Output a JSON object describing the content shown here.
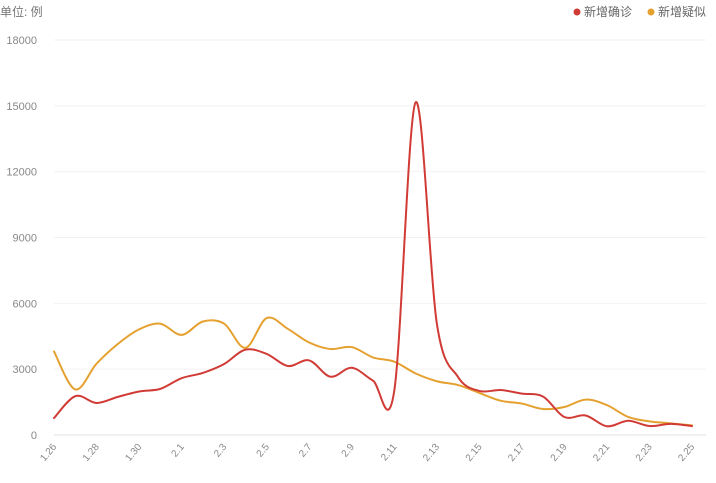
{
  "chart_data": {
    "type": "line",
    "unit_label": "单位: 例",
    "x": [
      "1.26",
      "1.27",
      "1.28",
      "1.29",
      "1.30",
      "1.31",
      "2.1",
      "2.2",
      "2.3",
      "2.4",
      "2.5",
      "2.6",
      "2.7",
      "2.8",
      "2.9",
      "2.10",
      "2.11",
      "2.12",
      "2.13",
      "2.14",
      "2.15",
      "2.16",
      "2.17",
      "2.18",
      "2.19",
      "2.20",
      "2.21",
      "2.22",
      "2.23",
      "2.24",
      "2.25"
    ],
    "x_tick_labels": [
      "1.26",
      "1.28",
      "1.30",
      "2.1",
      "2.3",
      "2.5",
      "2.7",
      "2.9",
      "2.11",
      "2.13",
      "2.15",
      "2.17",
      "2.19",
      "2.21",
      "2.23",
      "2.25"
    ],
    "y_ticks": [
      0,
      3000,
      6000,
      9000,
      12000,
      15000,
      18000
    ],
    "ylim": [
      0,
      18000
    ],
    "grid": true,
    "legend_position": "top-right",
    "series": [
      {
        "name": "新增确诊",
        "color": "#d13b36",
        "values": [
          770,
          1771,
          1459,
          1737,
          1982,
          2102,
          2590,
          2829,
          3235,
          3887,
          3694,
          3143,
          3399,
          2656,
          3062,
          2478,
          2015,
          15152,
          5090,
          2641,
          2009,
          2048,
          1886,
          1749,
          820,
          889,
          397,
          648,
          409,
          508,
          406
        ],
        "style": "smooth"
      },
      {
        "name": "新增疑似",
        "color": "#e5a12f",
        "values": [
          3806,
          2077,
          3248,
          4148,
          4812,
          5072,
          4562,
          5173,
          5072,
          3971,
          5328,
          4833,
          4214,
          3916,
          4008,
          3536,
          3342,
          2807,
          2450,
          2277,
          1918,
          1563,
          1432,
          1185,
          1277,
          1614,
          1361,
          822,
          620,
          530,
          439
        ]
      }
    ]
  }
}
